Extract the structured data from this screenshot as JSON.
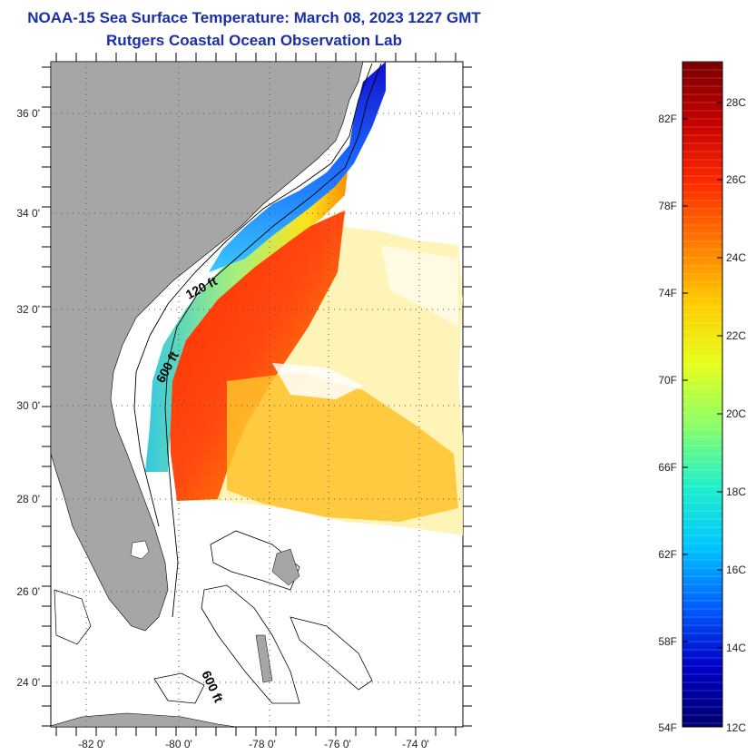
{
  "header": {
    "title": "NOAA-15 Sea Surface Temperature:  March 08, 2023 1227 GMT",
    "subtitle": "Rutgers Coastal Ocean Observation Lab"
  },
  "map": {
    "lat_labels": [
      "36 0'",
      "34 0'",
      "32 0'",
      "30 0'",
      "28 0'",
      "26 0'",
      "24 0'"
    ],
    "lon_labels": [
      "-82 0'",
      "-80 0'",
      "-78 0'",
      "-76 0'",
      "-74 0'"
    ],
    "lat_range": [
      23,
      37
    ],
    "lon_range": [
      -83,
      -73
    ],
    "isobath_labels": [
      "120 ft",
      "600 ft",
      "600 ft"
    ],
    "land_color": "#a6a6a6",
    "ocean_color": "#ffffff"
  },
  "colorbar": {
    "fahrenheit_labels": [
      "82F",
      "78F",
      "74F",
      "70F",
      "66F",
      "62F",
      "58F",
      "54F"
    ],
    "celsius_labels": [
      "28C",
      "26C",
      "24C",
      "22C",
      "20C",
      "18C",
      "16C",
      "14C",
      "12C"
    ],
    "colors_top_to_bottom": [
      "#7a0000",
      "#c40000",
      "#ff2a00",
      "#ff7a00",
      "#ffcc00",
      "#e6ff1a",
      "#8cff66",
      "#22f0c8",
      "#00c8ff",
      "#0060ff",
      "#0000c8",
      "#00006e"
    ]
  }
}
